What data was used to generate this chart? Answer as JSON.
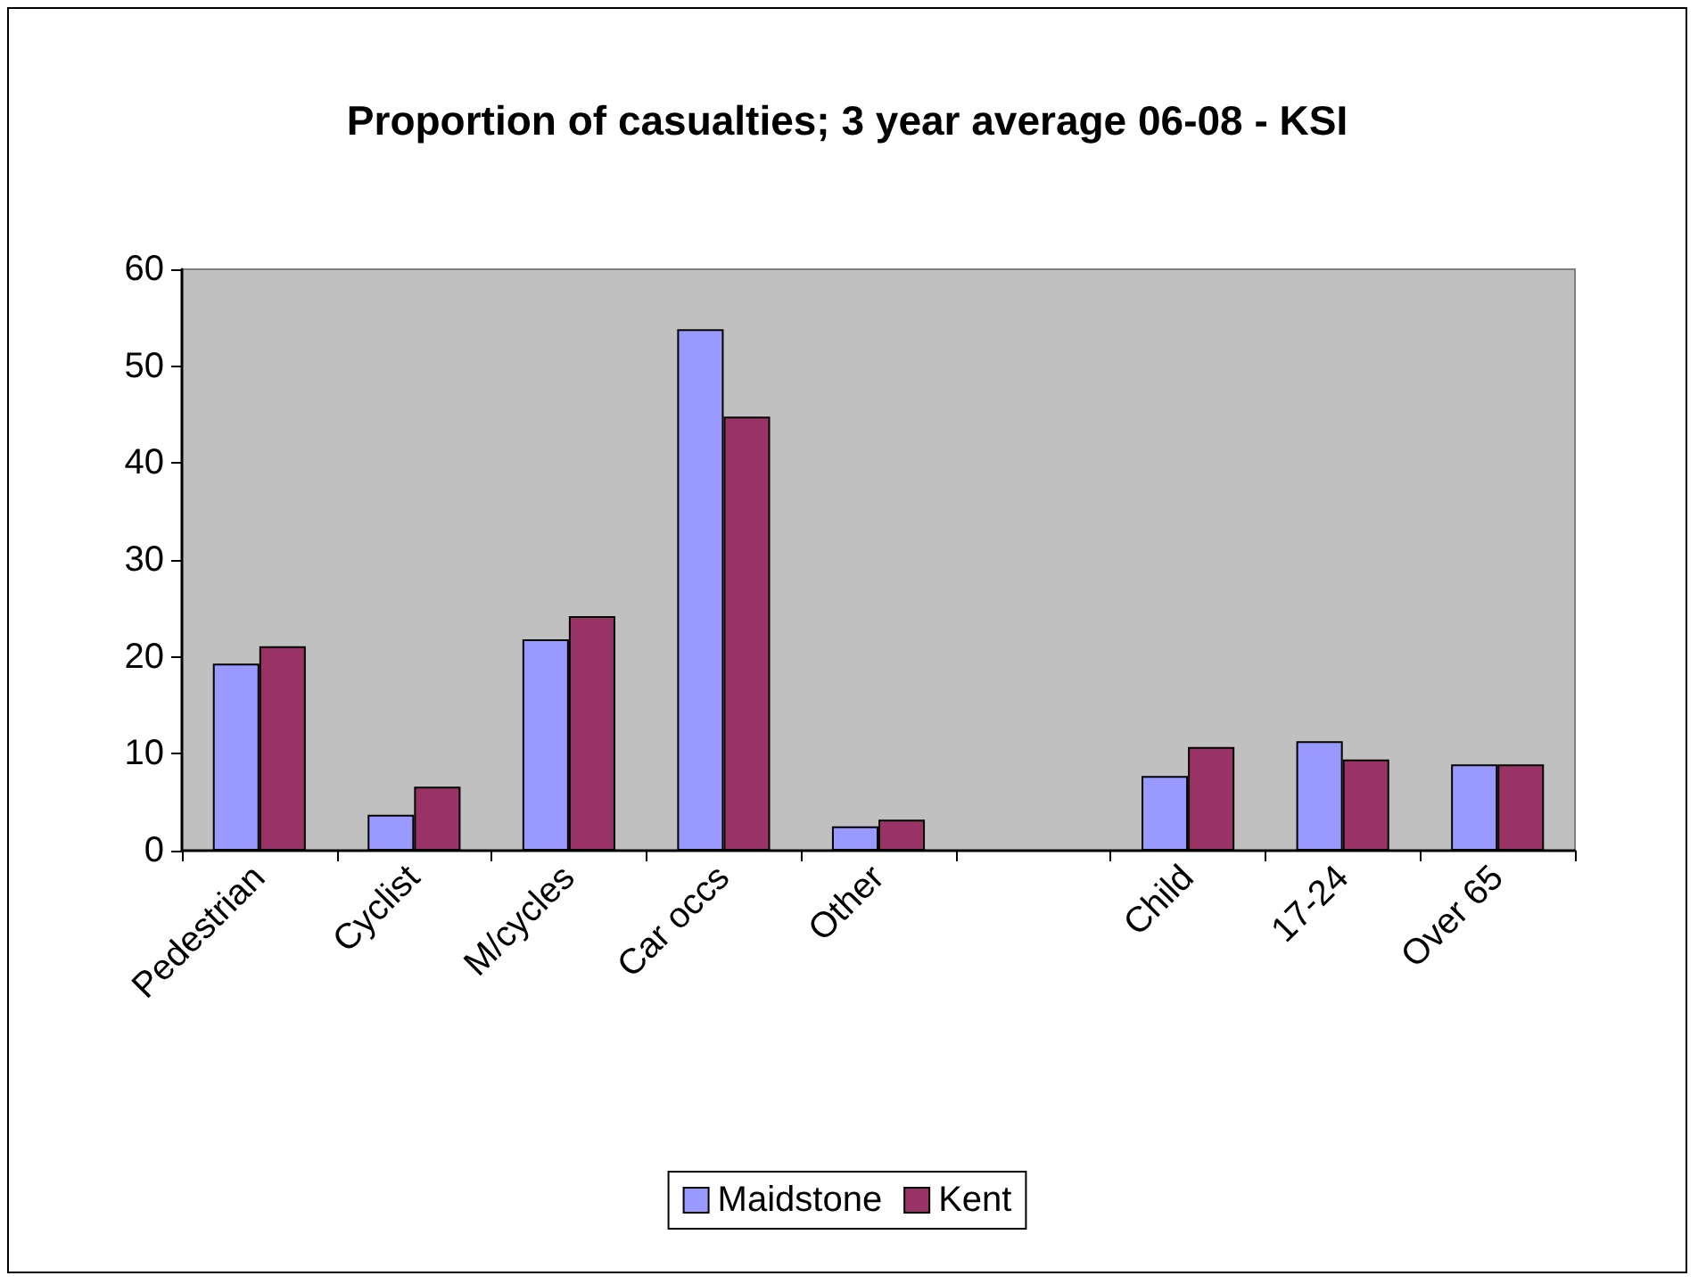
{
  "chart_data": {
    "type": "bar",
    "title": "Proportion of casualties; 3 year average 06-08 - KSI",
    "categories": [
      "Pedestrian",
      "Cyclist",
      "M/cycles",
      "Car occs",
      "Other",
      null,
      "Child",
      "17-24",
      "Over 65"
    ],
    "series": [
      {
        "name": "Maidstone",
        "color": "#9999ff",
        "values": [
          19.3,
          3.7,
          21.8,
          53.8,
          2.5,
          null,
          7.7,
          11.3,
          8.9
        ]
      },
      {
        "name": "Kent",
        "color": "#993366",
        "values": [
          21.1,
          6.6,
          24.2,
          44.8,
          3.2,
          null,
          10.7,
          9.4,
          8.9
        ]
      }
    ],
    "ylim": [
      0,
      60
    ],
    "yticks": [
      0,
      10,
      20,
      30,
      40,
      50,
      60
    ],
    "legend": "bottom"
  }
}
